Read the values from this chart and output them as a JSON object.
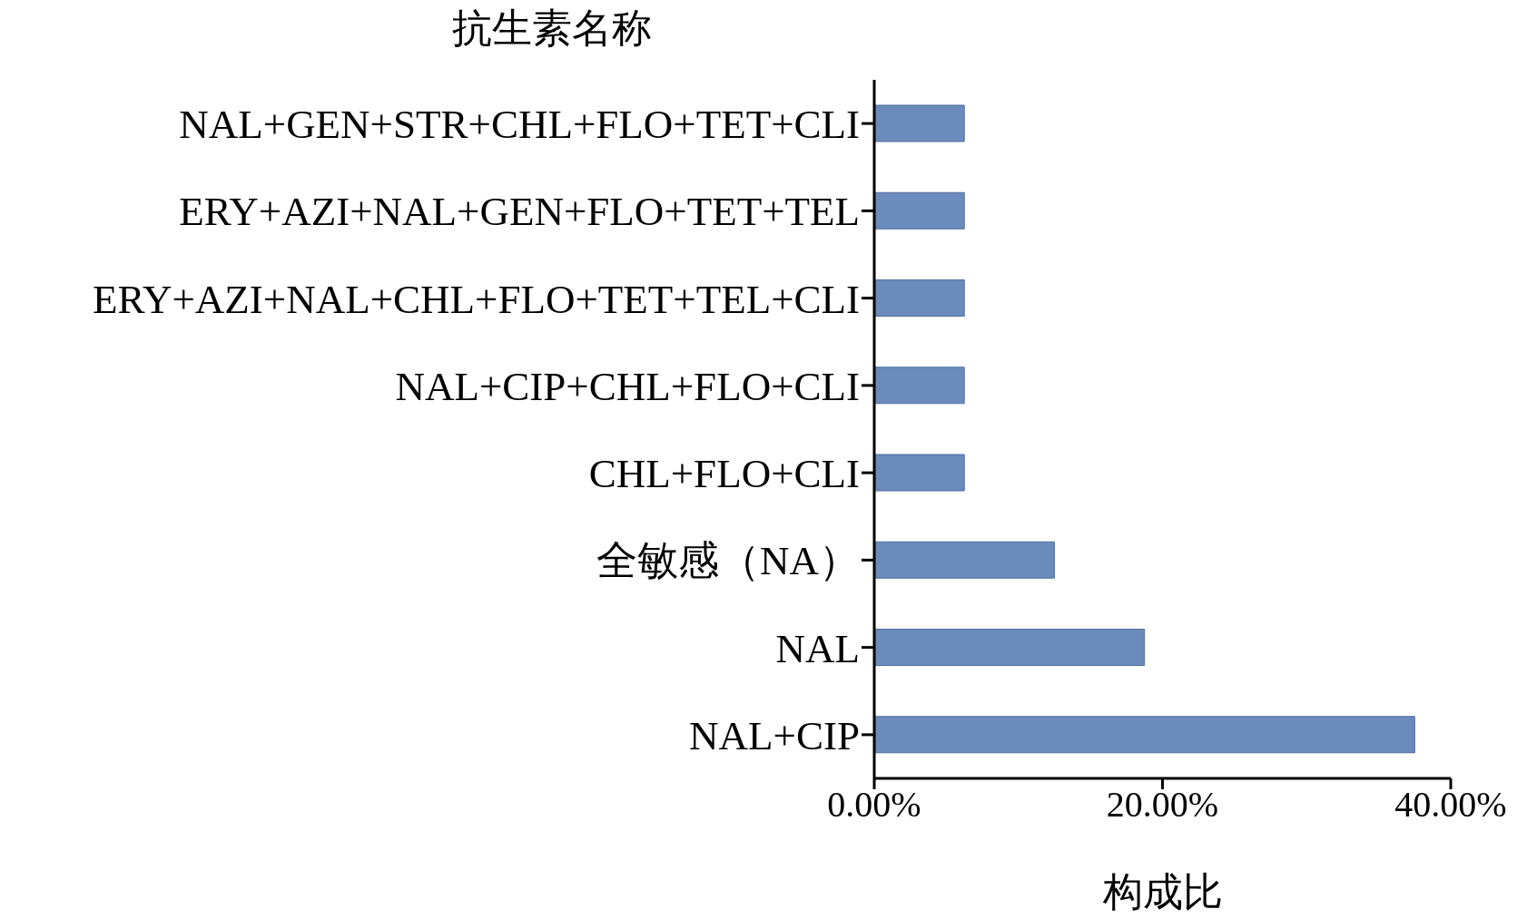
{
  "chart_data": {
    "type": "bar",
    "orientation": "horizontal",
    "ylabel": "抗生素名称",
    "xlabel": "构成比",
    "categories": [
      "NAL+GEN+STR+CHL+FLO+TET+CLI",
      "ERY+AZI+NAL+GEN+FLO+TET+TEL",
      "ERY+AZI+NAL+CHL+FLO+TET+TEL+CLI",
      "NAL+CIP+CHL+FLO+CLI",
      "CHL+FLO+CLI",
      "全敏感（NA）",
      "NAL",
      "NAL+CIP"
    ],
    "values": [
      6.25,
      6.25,
      6.25,
      6.25,
      6.25,
      12.5,
      18.75,
      37.5
    ],
    "color": "#6a8bbb",
    "xlim": [
      0,
      40
    ],
    "xticks": [
      {
        "value": 0,
        "label": "0.00%"
      },
      {
        "value": 20,
        "label": "20.00%"
      },
      {
        "value": 40,
        "label": "40.00%"
      }
    ],
    "grid": false,
    "legend": false
  }
}
